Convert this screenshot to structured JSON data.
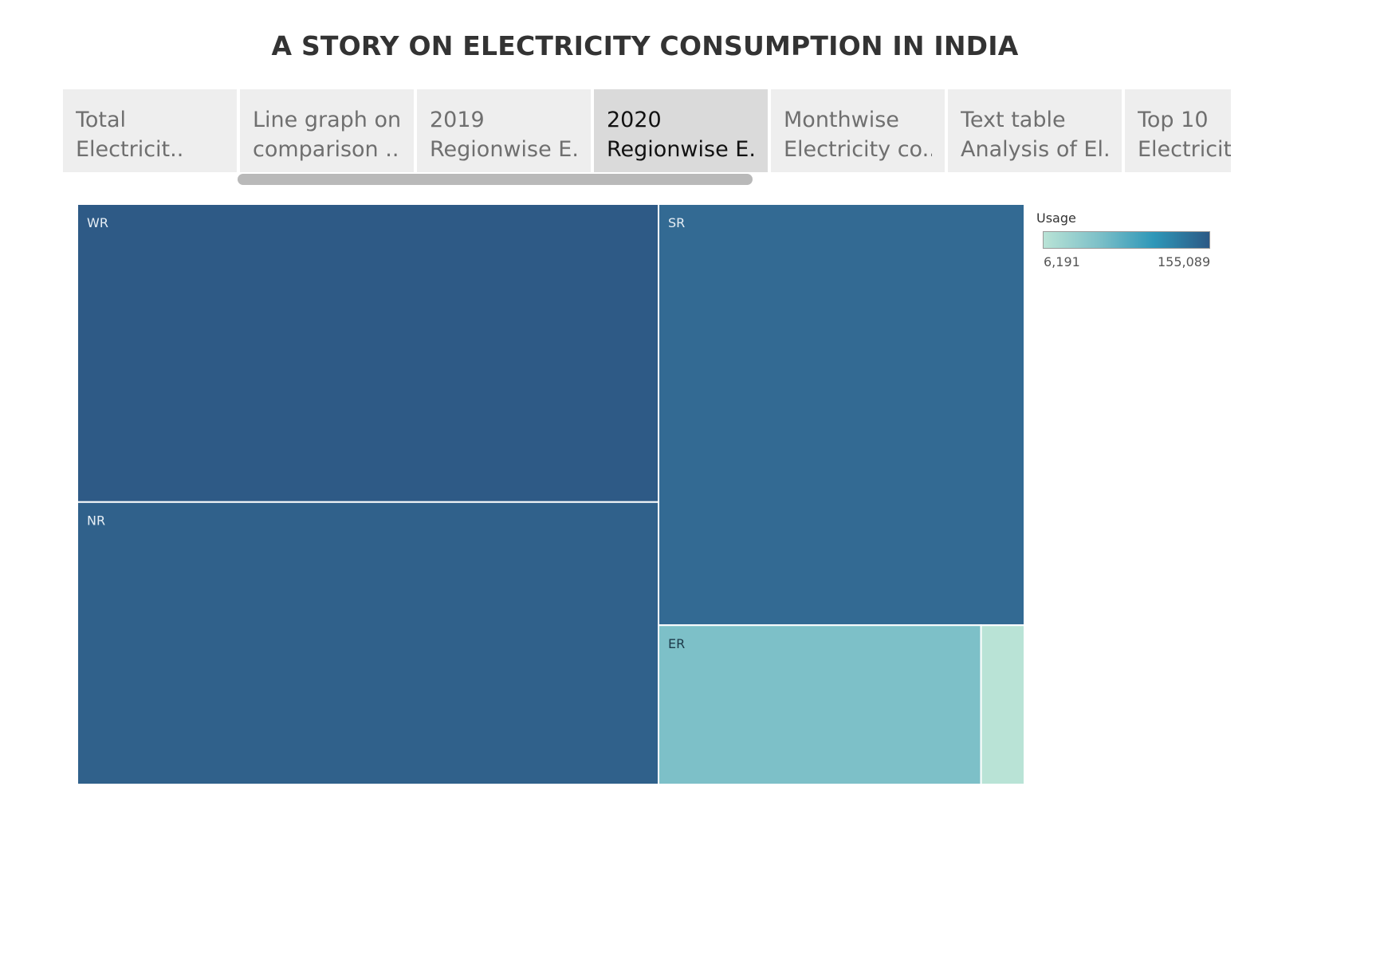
{
  "story": {
    "title": "A STORY ON ELECTRICITY CONSUMPTION IN INDIA",
    "active_tab": 3,
    "tabs": [
      {
        "line1": "Total",
        "line2": "Electricit.."
      },
      {
        "line1": "Line graph on",
        "line2": "comparison .."
      },
      {
        "line1": "2019",
        "line2": "Regionwise E.."
      },
      {
        "line1": "2020",
        "line2": "Regionwise E.."
      },
      {
        "line1": "Monthwise",
        "line2": "Electricity co.."
      },
      {
        "line1": "Text table",
        "line2": "Analysis of El.."
      },
      {
        "line1": "Top 10",
        "line2": "Electricity c.."
      }
    ]
  },
  "legend": {
    "title": "Usage",
    "min_label": "6,191",
    "max_label": "155,089",
    "colors": [
      "#b9e3d6",
      "#7dc0c8",
      "#2e97b8",
      "#2c5985"
    ]
  },
  "chart_data": {
    "type": "treemap",
    "measure": "Usage",
    "color_range": [
      6191,
      155089
    ],
    "items": [
      {
        "label": "WR",
        "value": 155089,
        "color": "#2e5a86",
        "text_color": "#e6eef5"
      },
      {
        "label": "NR",
        "value": 147000,
        "color": "#30618b",
        "text_color": "#e6eef5"
      },
      {
        "label": "SR",
        "value": 138000,
        "color": "#336a93",
        "text_color": "#e6eef5"
      },
      {
        "label": "ER",
        "value": 46000,
        "color": "#7dc0c8",
        "text_color": "#1d3a4a"
      },
      {
        "label": "",
        "value": 6191,
        "color": "#b9e3d6",
        "text_color": "#1d3a4a"
      }
    ]
  }
}
